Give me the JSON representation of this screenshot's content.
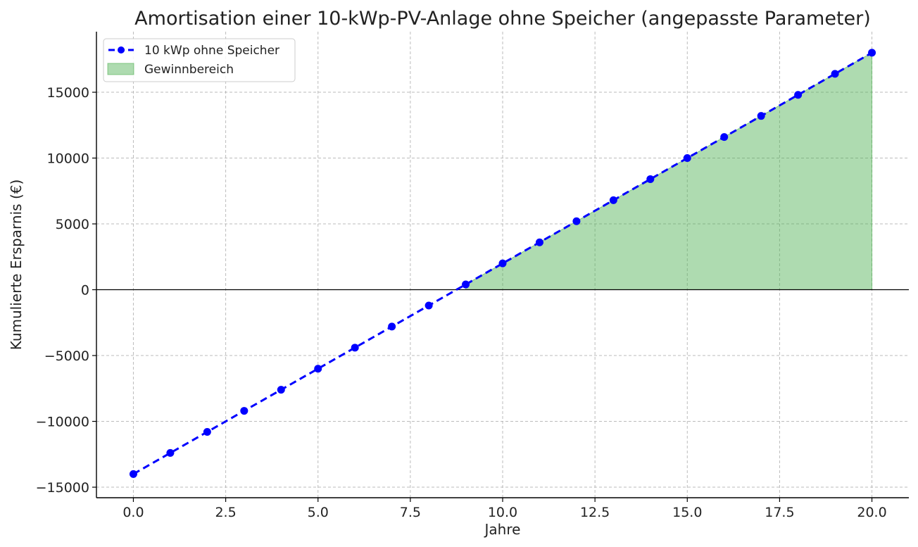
{
  "chart_data": {
    "type": "line",
    "title": "Amortisation einer 10-kWp-PV-Anlage ohne Speicher (angepasste Parameter)",
    "xlabel": "Jahre",
    "ylabel": "Kumulierte Ersparnis (€)",
    "xlim": [
      -1,
      21
    ],
    "ylim": [
      -15800,
      19600
    ],
    "xticks": [
      0.0,
      2.5,
      5.0,
      7.5,
      10.0,
      12.5,
      15.0,
      17.5,
      20.0
    ],
    "xtick_labels": [
      "0.0",
      "2.5",
      "5.0",
      "7.5",
      "10.0",
      "12.5",
      "15.0",
      "17.5",
      "20.0"
    ],
    "yticks": [
      -15000,
      -10000,
      -5000,
      0,
      5000,
      10000,
      15000
    ],
    "ytick_labels": [
      "−15000",
      "−10000",
      "−5000",
      "0",
      "5000",
      "10000",
      "15000"
    ],
    "grid": true,
    "legend_position": "top-left",
    "series": [
      {
        "name": "10 kWp ohne Speicher",
        "color": "#0000ff",
        "style": "dashed-line-with-circle-markers",
        "x": [
          0,
          1,
          2,
          3,
          4,
          5,
          6,
          7,
          8,
          9,
          10,
          11,
          12,
          13,
          14,
          15,
          16,
          17,
          18,
          19,
          20
        ],
        "y": [
          -14000,
          -12400,
          -10800,
          -9200,
          -7600,
          -6000,
          -4400,
          -2800,
          -1200,
          400,
          2000,
          3600,
          5200,
          6800,
          8400,
          10000,
          11600,
          13200,
          14800,
          16400,
          18000
        ]
      }
    ],
    "fill": {
      "name": "Gewinnbereich",
      "color": "#4caf50",
      "opacity": 0.45,
      "condition": "y > 0"
    },
    "zero_line": true
  }
}
